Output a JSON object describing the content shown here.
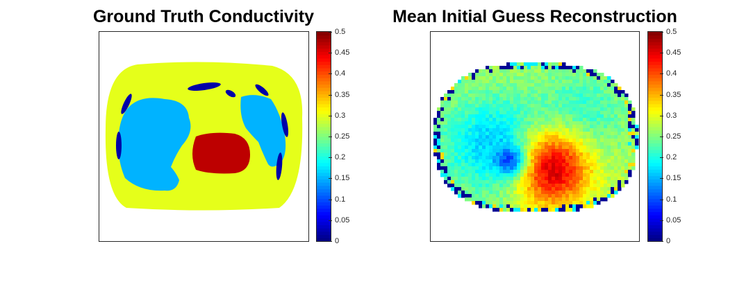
{
  "figure": {
    "colormap": "jet",
    "background": "#ffffff"
  },
  "chart_data": [
    {
      "type": "heatmap",
      "title": "Ground Truth Conductivity",
      "xlabel": "",
      "ylabel": "",
      "axis_ticks_visible": false,
      "colorbar": {
        "limits": [
          0,
          0.5
        ],
        "ticks": [
          "0",
          "0.05",
          "0.1",
          "0.15",
          "0.2",
          "0.25",
          "0.3",
          "0.35",
          "0.4",
          "0.45",
          "0.5"
        ]
      },
      "regions": [
        {
          "label": "background",
          "value": 0.3
        },
        {
          "label": "lungs",
          "value": 0.15
        },
        {
          "label": "heart",
          "value": 0.47
        },
        {
          "label": "ribs",
          "value": 0.02
        }
      ]
    },
    {
      "type": "heatmap",
      "title": "Mean Initial Guess Reconstruction",
      "xlabel": "",
      "ylabel": "",
      "axis_ticks_visible": false,
      "colorbar": {
        "limits": [
          0,
          0.5
        ],
        "ticks": [
          "0",
          "0.05",
          "0.1",
          "0.15",
          "0.2",
          "0.25",
          "0.3",
          "0.35",
          "0.4",
          "0.45",
          "0.5"
        ]
      },
      "value_range_observed": [
        0.0,
        0.5
      ]
    }
  ]
}
